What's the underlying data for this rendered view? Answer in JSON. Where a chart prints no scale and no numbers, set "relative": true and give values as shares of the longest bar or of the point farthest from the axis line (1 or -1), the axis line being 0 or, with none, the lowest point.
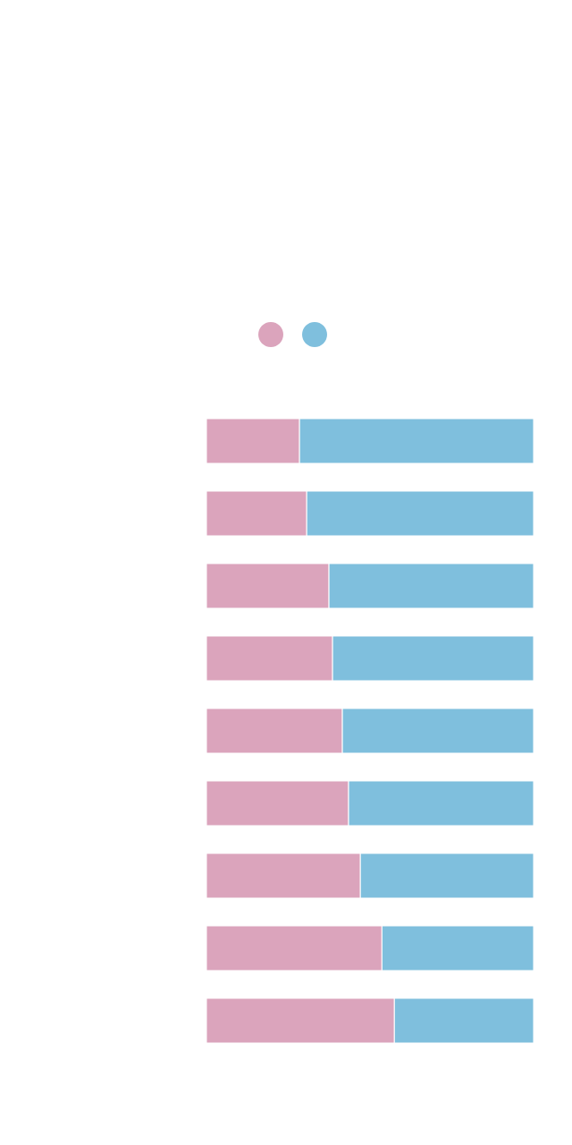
{
  "chart_data": {
    "type": "bar",
    "orientation": "horizontal",
    "stacked": true,
    "relative": true,
    "categories": [
      null,
      null,
      null,
      null,
      null,
      null,
      null,
      null,
      null
    ],
    "series": [
      {
        "color": "#dba4bc",
        "values": [
          0.284,
          0.306,
          0.374,
          0.385,
          0.415,
          0.434,
          0.47,
          0.536,
          0.574
        ]
      },
      {
        "color": "#7fbfdd",
        "values": [
          0.716,
          0.694,
          0.626,
          0.615,
          0.585,
          0.566,
          0.53,
          0.464,
          0.426
        ]
      }
    ]
  }
}
